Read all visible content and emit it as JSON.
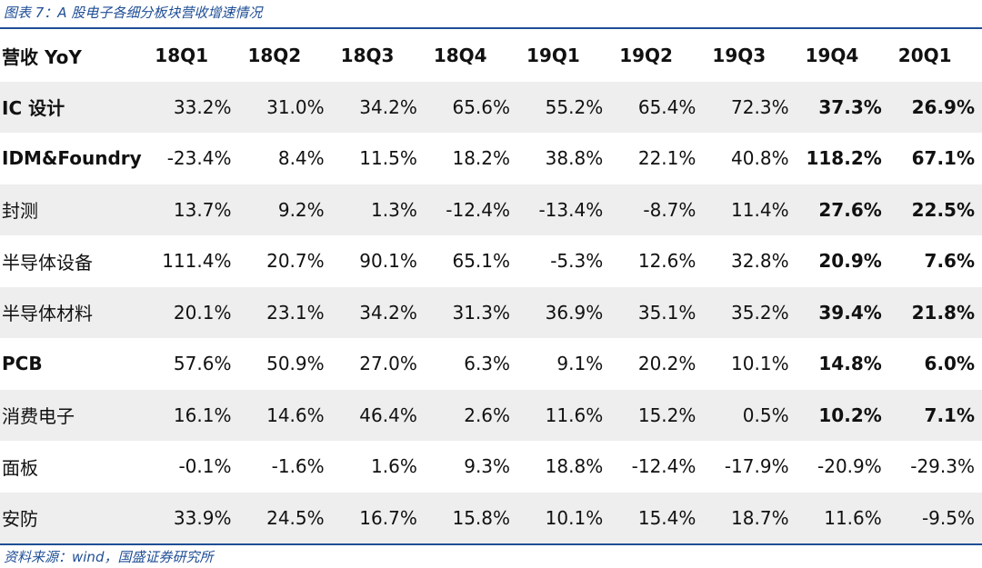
{
  "caption": "图表 7：A 股电子各细分板块营收增速情况",
  "source": "资料来源：wind，国盛证券研究所",
  "table": {
    "header": [
      "营收 YoY",
      "18Q1",
      "18Q2",
      "18Q3",
      "18Q4",
      "19Q1",
      "19Q2",
      "19Q3",
      "19Q4",
      "20Q1"
    ],
    "rows": [
      {
        "label": "IC 设计",
        "label_bold": true,
        "values": [
          "33.2%",
          "31.0%",
          "34.2%",
          "65.6%",
          "55.2%",
          "65.4%",
          "72.3%",
          "37.3%",
          "26.9%"
        ],
        "bold_last": true
      },
      {
        "label": "IDM&Foundry",
        "label_bold": true,
        "values": [
          "-23.4%",
          "8.4%",
          "11.5%",
          "18.2%",
          "38.8%",
          "22.1%",
          "40.8%",
          "118.2%",
          "67.1%"
        ],
        "bold_last": true
      },
      {
        "label": "封测",
        "label_bold": false,
        "values": [
          "13.7%",
          "9.2%",
          "1.3%",
          "-12.4%",
          "-13.4%",
          "-8.7%",
          "11.4%",
          "27.6%",
          "22.5%"
        ],
        "bold_last": true
      },
      {
        "label": "半导体设备",
        "label_bold": false,
        "values": [
          "111.4%",
          "20.7%",
          "90.1%",
          "65.1%",
          "-5.3%",
          "12.6%",
          "32.8%",
          "20.9%",
          "7.6%"
        ],
        "bold_last": true
      },
      {
        "label": "半导体材料",
        "label_bold": false,
        "values": [
          "20.1%",
          "23.1%",
          "34.2%",
          "31.3%",
          "36.9%",
          "35.1%",
          "35.2%",
          "39.4%",
          "21.8%"
        ],
        "bold_last": true
      },
      {
        "label": "PCB",
        "label_bold": true,
        "values": [
          "57.6%",
          "50.9%",
          "27.0%",
          "6.3%",
          "9.1%",
          "20.2%",
          "10.1%",
          "14.8%",
          "6.0%"
        ],
        "bold_last": true
      },
      {
        "label": "消费电子",
        "label_bold": false,
        "values": [
          "16.1%",
          "14.6%",
          "46.4%",
          "2.6%",
          "11.6%",
          "15.2%",
          "0.5%",
          "10.2%",
          "7.1%"
        ],
        "bold_last": true
      },
      {
        "label": "面板",
        "label_bold": false,
        "values": [
          "-0.1%",
          "-1.6%",
          "1.6%",
          "9.3%",
          "18.8%",
          "-12.4%",
          "-17.9%",
          "-20.9%",
          "-29.3%"
        ],
        "bold_last": false
      },
      {
        "label": "安防",
        "label_bold": false,
        "values": [
          "33.9%",
          "24.5%",
          "16.7%",
          "15.8%",
          "10.1%",
          "15.4%",
          "18.7%",
          "11.6%",
          "-9.5%"
        ],
        "bold_last": false
      }
    ]
  },
  "colors": {
    "accent": "#1f4e96",
    "stripe": "#eeeeee"
  }
}
